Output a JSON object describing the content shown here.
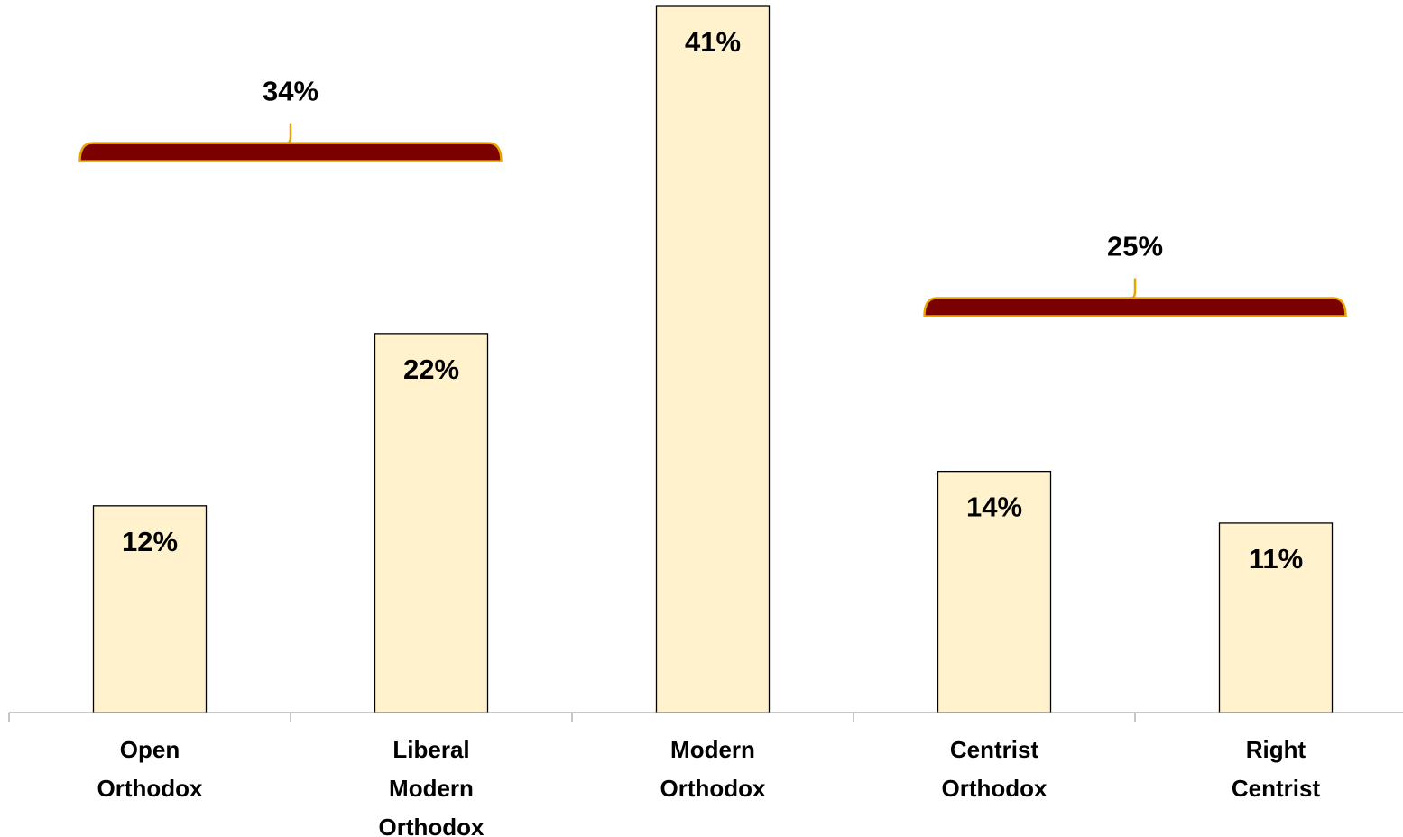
{
  "chart_data": {
    "type": "bar",
    "title": "",
    "xlabel": "",
    "ylabel": "",
    "ylim": [
      0,
      41
    ],
    "grid": false,
    "legend": "none",
    "categories": [
      [
        "Open",
        "Orthodox"
      ],
      [
        "Liberal",
        "Modern",
        "Orthodox"
      ],
      [
        "Modern",
        "Orthodox"
      ],
      [
        "Centrist",
        "Orthodox"
      ],
      [
        "Right",
        "Centrist"
      ]
    ],
    "values": [
      12,
      22,
      41,
      14,
      11
    ],
    "value_labels": [
      "12%",
      "22%",
      "41%",
      "14%",
      "11%"
    ],
    "groups": [
      {
        "label": "34%",
        "value": 34,
        "from": 0,
        "to": 1
      },
      {
        "label": "25%",
        "value": 25,
        "from": 3,
        "to": 4
      }
    ],
    "colors": {
      "bar_fill": "#FFF2CC",
      "bar_stroke": "#000000",
      "bracket_fill": "#7B0000",
      "bracket_stroke": "#E8A500",
      "axis": "#A6A6A6"
    }
  }
}
